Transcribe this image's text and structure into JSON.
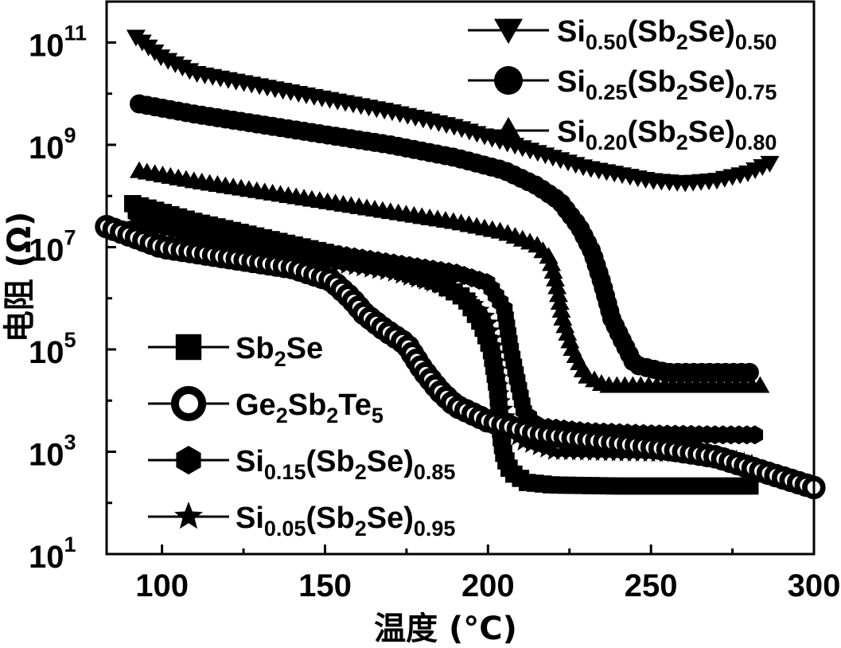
{
  "chart_data": {
    "type": "line",
    "xlabel": "温度 (°C)",
    "ylabel": "电阻 (Ω)",
    "xlim": [
      83,
      300
    ],
    "ylim_log10": [
      1,
      11.8
    ],
    "y_scale": "log",
    "grid": false,
    "x_ticks": [
      "100",
      "150",
      "200",
      "250",
      "300"
    ],
    "y_ticks": [
      {
        "base": "10",
        "exp": "1"
      },
      {
        "base": "10",
        "exp": "3"
      },
      {
        "base": "10",
        "exp": "5"
      },
      {
        "base": "10",
        "exp": "7"
      },
      {
        "base": "10",
        "exp": "9"
      },
      {
        "base": "10",
        "exp": "11"
      }
    ],
    "legend_top": {
      "placement": "top-right",
      "entries": [
        {
          "marker": "triangle-down",
          "parts": [
            [
              "n",
              "Si"
            ],
            [
              "s",
              "0.50"
            ],
            [
              "n",
              "(Sb"
            ],
            [
              "s",
              "2"
            ],
            [
              "n",
              "Se)"
            ],
            [
              "s",
              "0.50"
            ]
          ]
        },
        {
          "marker": "circle",
          "parts": [
            [
              "n",
              "Si"
            ],
            [
              "s",
              "0.25"
            ],
            [
              "n",
              "(Sb"
            ],
            [
              "s",
              "2"
            ],
            [
              "n",
              "Se)"
            ],
            [
              "s",
              "0.75"
            ]
          ]
        },
        {
          "marker": "triangle-up",
          "parts": [
            [
              "n",
              "Si"
            ],
            [
              "s",
              "0.20"
            ],
            [
              "n",
              "(Sb"
            ],
            [
              "s",
              "2"
            ],
            [
              "n",
              "Se)"
            ],
            [
              "s",
              "0.80"
            ]
          ]
        }
      ]
    },
    "legend_bottom": {
      "placement": "bottom-left",
      "entries": [
        {
          "marker": "square",
          "parts": [
            [
              "n",
              "Sb"
            ],
            [
              "s",
              "2"
            ],
            [
              "n",
              "Se"
            ]
          ]
        },
        {
          "marker": "circle-open",
          "parts": [
            [
              "n",
              "Ge"
            ],
            [
              "s",
              "2"
            ],
            [
              "n",
              "Sb"
            ],
            [
              "s",
              "2"
            ],
            [
              "n",
              "Te"
            ],
            [
              "s",
              "5"
            ]
          ]
        },
        {
          "marker": "hexagon",
          "parts": [
            [
              "n",
              "Si"
            ],
            [
              "s",
              "0.15"
            ],
            [
              "n",
              "(Sb"
            ],
            [
              "s",
              "2"
            ],
            [
              "n",
              "Se)"
            ],
            [
              "s",
              "0.85"
            ]
          ]
        },
        {
          "marker": "star",
          "parts": [
            [
              "n",
              "Si"
            ],
            [
              "s",
              "0.05"
            ],
            [
              "n",
              "(Sb"
            ],
            [
              "s",
              "2"
            ],
            [
              "n",
              "Se)"
            ],
            [
              "s",
              "0.95"
            ]
          ]
        }
      ]
    },
    "series": [
      {
        "marker": "triangle-down",
        "points": [
          [
            92,
            11.1
          ],
          [
            100,
            10.7
          ],
          [
            110,
            10.4
          ],
          [
            130,
            10.15
          ],
          [
            150,
            9.9
          ],
          [
            170,
            9.65
          ],
          [
            190,
            9.35
          ],
          [
            210,
            8.95
          ],
          [
            230,
            8.55
          ],
          [
            250,
            8.3
          ],
          [
            260,
            8.25
          ],
          [
            270,
            8.3
          ],
          [
            280,
            8.45
          ],
          [
            287,
            8.65
          ]
        ]
      },
      {
        "marker": "circle",
        "points": [
          [
            93,
            9.8
          ],
          [
            110,
            9.6
          ],
          [
            130,
            9.4
          ],
          [
            150,
            9.2
          ],
          [
            170,
            9.0
          ],
          [
            190,
            8.75
          ],
          [
            205,
            8.5
          ],
          [
            215,
            8.2
          ],
          [
            222,
            7.9
          ],
          [
            228,
            7.4
          ],
          [
            232,
            6.9
          ],
          [
            235,
            6.3
          ],
          [
            238,
            5.6
          ],
          [
            241,
            5.2
          ],
          [
            245,
            4.7
          ],
          [
            255,
            4.55
          ],
          [
            270,
            4.55
          ],
          [
            282,
            4.55
          ]
        ]
      },
      {
        "marker": "triangle-up",
        "points": [
          [
            93,
            8.5
          ],
          [
            110,
            8.3
          ],
          [
            130,
            8.1
          ],
          [
            150,
            7.9
          ],
          [
            170,
            7.7
          ],
          [
            190,
            7.5
          ],
          [
            205,
            7.3
          ],
          [
            215,
            7.05
          ],
          [
            219,
            6.8
          ],
          [
            221,
            6.3
          ],
          [
            223,
            5.6
          ],
          [
            226,
            5.0
          ],
          [
            230,
            4.5
          ],
          [
            236,
            4.3
          ],
          [
            250,
            4.3
          ],
          [
            270,
            4.3
          ],
          [
            284,
            4.3
          ]
        ]
      },
      {
        "marker": "square",
        "points": [
          [
            91,
            7.85
          ],
          [
            110,
            7.5
          ],
          [
            130,
            7.2
          ],
          [
            150,
            6.9
          ],
          [
            170,
            6.6
          ],
          [
            185,
            6.3
          ],
          [
            193,
            6.0
          ],
          [
            198,
            5.5
          ],
          [
            201,
            5.0
          ],
          [
            203,
            4.2
          ],
          [
            204,
            3.3
          ],
          [
            205,
            2.9
          ],
          [
            207,
            2.6
          ],
          [
            212,
            2.4
          ],
          [
            220,
            2.35
          ],
          [
            240,
            2.33
          ],
          [
            260,
            2.33
          ],
          [
            282,
            2.33
          ]
        ]
      },
      {
        "marker": "hexagon",
        "points": [
          [
            92,
            7.65
          ],
          [
            110,
            7.4
          ],
          [
            130,
            7.1
          ],
          [
            150,
            6.9
          ],
          [
            170,
            6.7
          ],
          [
            190,
            6.5
          ],
          [
            200,
            6.3
          ],
          [
            205,
            5.8
          ],
          [
            207,
            5.0
          ],
          [
            209,
            4.4
          ],
          [
            211,
            3.8
          ],
          [
            215,
            3.5
          ],
          [
            230,
            3.4
          ],
          [
            250,
            3.35
          ],
          [
            270,
            3.33
          ],
          [
            283,
            3.33
          ]
        ]
      },
      {
        "marker": "star",
        "points": [
          [
            92,
            7.45
          ],
          [
            110,
            7.2
          ],
          [
            130,
            6.95
          ],
          [
            150,
            6.7
          ],
          [
            170,
            6.5
          ],
          [
            185,
            6.25
          ],
          [
            195,
            5.95
          ],
          [
            200,
            5.6
          ],
          [
            202,
            5.0
          ],
          [
            204,
            4.0
          ],
          [
            206,
            3.6
          ],
          [
            210,
            3.2
          ],
          [
            220,
            3.0
          ],
          [
            240,
            2.97
          ],
          [
            260,
            2.95
          ],
          [
            275,
            2.87
          ],
          [
            282,
            2.75
          ]
        ]
      },
      {
        "marker": "circle-open",
        "points": [
          [
            83,
            7.4
          ],
          [
            100,
            7.0
          ],
          [
            120,
            6.8
          ],
          [
            140,
            6.6
          ],
          [
            152,
            6.35
          ],
          [
            158,
            6.0
          ],
          [
            162,
            5.7
          ],
          [
            168,
            5.4
          ],
          [
            175,
            5.1
          ],
          [
            180,
            4.6
          ],
          [
            185,
            4.2
          ],
          [
            190,
            3.9
          ],
          [
            200,
            3.6
          ],
          [
            215,
            3.35
          ],
          [
            235,
            3.2
          ],
          [
            255,
            3.05
          ],
          [
            270,
            2.9
          ],
          [
            280,
            2.7
          ],
          [
            290,
            2.5
          ],
          [
            300,
            2.3
          ]
        ]
      }
    ]
  }
}
